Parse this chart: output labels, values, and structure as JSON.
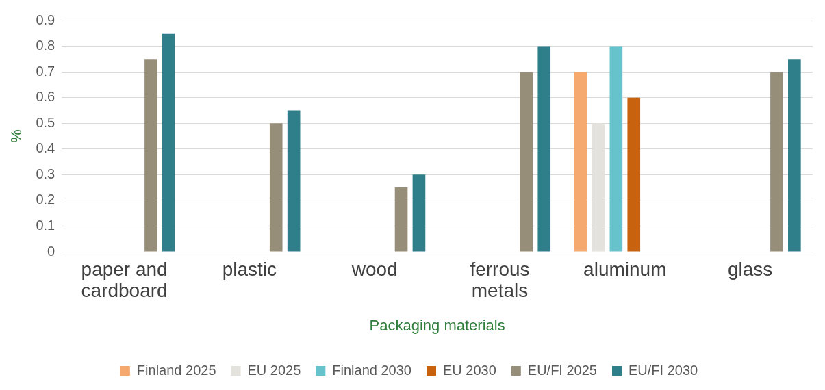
{
  "chart_data": {
    "type": "bar",
    "xlabel": "Packaging materials",
    "ylabel": "%",
    "categories": [
      "paper and cardboard",
      "plastic",
      "wood",
      "ferrous metals",
      "aluminum",
      "glass"
    ],
    "series": [
      {
        "name": "Finland 2025",
        "color": "#f5a96e",
        "values": [
          null,
          null,
          null,
          null,
          0.7,
          null
        ]
      },
      {
        "name": "EU 2025",
        "color": "#e3e2dc",
        "values": [
          null,
          null,
          null,
          null,
          0.5,
          null
        ]
      },
      {
        "name": "Finland 2030",
        "color": "#66c2cb",
        "values": [
          null,
          null,
          null,
          null,
          0.8,
          null
        ]
      },
      {
        "name": "EU 2030",
        "color": "#c8620f",
        "values": [
          null,
          null,
          null,
          null,
          0.6,
          null
        ]
      },
      {
        "name": "EU/FI 2025",
        "color": "#978e7a",
        "values": [
          0.75,
          0.5,
          0.25,
          0.7,
          null,
          0.7
        ]
      },
      {
        "name": "EU/FI 2030",
        "color": "#2e7f89",
        "values": [
          0.85,
          0.55,
          0.3,
          0.8,
          null,
          0.75
        ]
      }
    ],
    "ylim": [
      0,
      0.9
    ],
    "yticks": [
      0,
      0.1,
      0.2,
      0.3,
      0.4,
      0.5,
      0.6,
      0.7,
      0.8,
      0.9
    ],
    "grid": "y",
    "legend": "bottom"
  }
}
